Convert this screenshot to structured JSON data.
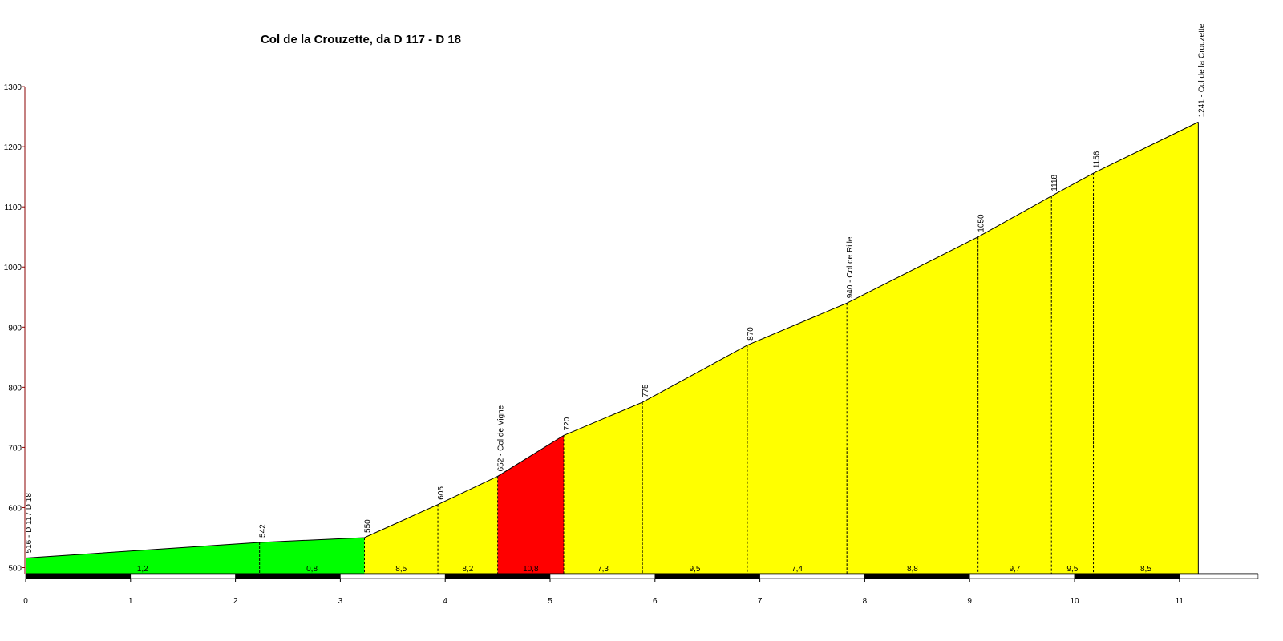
{
  "chart_data": {
    "type": "area",
    "title": "Col de la Crouzette, da D 117 - D 18",
    "xlabel": "",
    "ylabel": "",
    "xlim": [
      0,
      11.75
    ],
    "ylim": [
      490,
      1300
    ],
    "x_ticks": [
      "0",
      "1",
      "2",
      "3",
      "4",
      "5",
      "6",
      "7",
      "8",
      "9",
      "10",
      "11"
    ],
    "y_ticks": [
      "500",
      "600",
      "700",
      "800",
      "900",
      "1000",
      "1100",
      "1200",
      "1300"
    ],
    "profile": [
      {
        "km": 0.0,
        "alt": 516,
        "label": "516 - D 117 D 18"
      },
      {
        "km": 2.23,
        "alt": 542,
        "label": "542"
      },
      {
        "km": 3.23,
        "alt": 550,
        "label": "550"
      },
      {
        "km": 3.93,
        "alt": 605,
        "label": "605"
      },
      {
        "km": 4.5,
        "alt": 652,
        "label": "652 - Col de Vigne"
      },
      {
        "km": 5.13,
        "alt": 720,
        "label": "720"
      },
      {
        "km": 5.88,
        "alt": 775,
        "label": "775"
      },
      {
        "km": 6.88,
        "alt": 870,
        "label": "870"
      },
      {
        "km": 7.83,
        "alt": 940,
        "label": "940 - Col de Rille"
      },
      {
        "km": 9.08,
        "alt": 1050,
        "label": "1050"
      },
      {
        "km": 9.78,
        "alt": 1118,
        "label": "1118"
      },
      {
        "km": 10.18,
        "alt": 1156,
        "label": "1156"
      },
      {
        "km": 11.18,
        "alt": 1241,
        "label": "1241 - Col de la Crouzette"
      }
    ],
    "segments": [
      {
        "gradient": "1,2",
        "color": "#00ff00"
      },
      {
        "gradient": "0,8",
        "color": "#00ff00"
      },
      {
        "gradient": "8,5",
        "color": "#ffff00"
      },
      {
        "gradient": "8,2",
        "color": "#ffff00"
      },
      {
        "gradient": "10,8",
        "color": "#ff0000"
      },
      {
        "gradient": "7,3",
        "color": "#ffff00"
      },
      {
        "gradient": "9,5",
        "color": "#ffff00"
      },
      {
        "gradient": "7,4",
        "color": "#ffff00"
      },
      {
        "gradient": "8,8",
        "color": "#ffff00"
      },
      {
        "gradient": "9,7",
        "color": "#ffff00"
      },
      {
        "gradient": "9,5",
        "color": "#ffff00"
      },
      {
        "gradient": "8,5",
        "color": "#ffff00"
      }
    ],
    "grid": false,
    "legend": "none",
    "axis_color": "#8b0000",
    "outline_color": "#000000"
  }
}
